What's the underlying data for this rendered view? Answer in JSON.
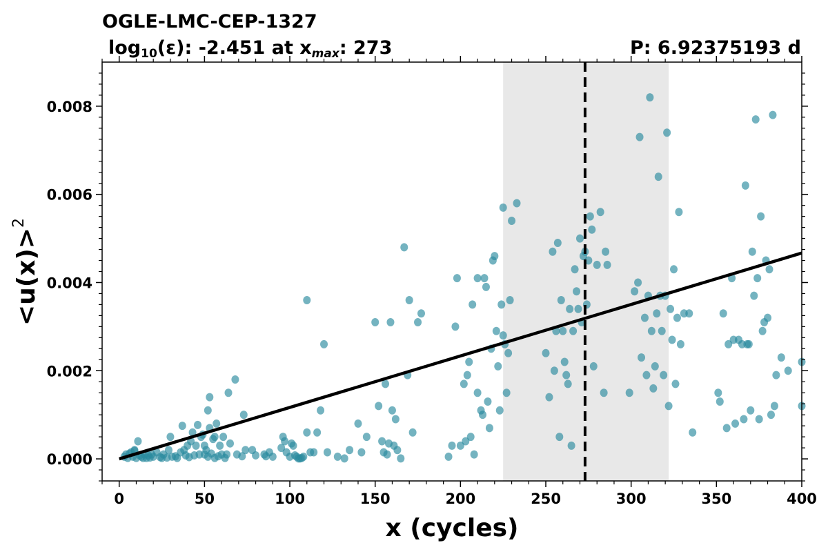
{
  "header": {
    "star_name": "OGLE-LMC-CEP-1327",
    "eps_label": "log",
    "eps_sub": "10",
    "eps_mid": "(ε): -2.451 at x",
    "xmax_sub": "max",
    "xmax_value": ": 273",
    "period": "P: 6.92375193 d"
  },
  "chart_data": {
    "type": "scatter",
    "title": "OGLE-LMC-CEP-1327",
    "xlabel": "x (cycles)",
    "ylabel": "<u(x)>",
    "ylabel_sup": "2",
    "xlim": [
      -10,
      400
    ],
    "ylim": [
      -0.0005,
      0.009
    ],
    "x_ticks": [
      0,
      50,
      100,
      150,
      200,
      250,
      300,
      350,
      400
    ],
    "x_tick_labels": [
      "0",
      "50",
      "100",
      "150",
      "200",
      "250",
      "300",
      "350",
      "400"
    ],
    "y_ticks": [
      0.0,
      0.002,
      0.004,
      0.006,
      0.008
    ],
    "y_tick_labels": [
      "0.000",
      "0.002",
      "0.004",
      "0.006",
      "0.008"
    ],
    "shaded_band_x": [
      225,
      322
    ],
    "vline_x": 273,
    "fit_line": {
      "x": [
        0,
        400
      ],
      "y": [
        0.0,
        0.00467
      ]
    },
    "colors": {
      "points": "#2a8a9e",
      "shade": "#e8e8e8",
      "line": "#000000"
    },
    "series": [
      {
        "points": [
          [
            3,
            5e-05
          ],
          [
            4,
            0.0001
          ],
          [
            5,
            2e-05
          ],
          [
            6,
            0.00012
          ],
          [
            7,
            0.00015
          ],
          [
            8,
            5e-05
          ],
          [
            9,
            0.0002
          ],
          [
            9,
            0.00018
          ],
          [
            10,
            2e-05
          ],
          [
            11,
            0.0004
          ],
          [
            12,
            8e-05
          ],
          [
            13,
            5e-05
          ],
          [
            14,
            2e-05
          ],
          [
            15,
            0.0001
          ],
          [
            16,
            2e-05
          ],
          [
            17,
            8e-05
          ],
          [
            18,
            3e-05
          ],
          [
            19,
            0.0001
          ],
          [
            20,
            5e-05
          ],
          [
            22,
            0.00015
          ],
          [
            24,
            4e-05
          ],
          [
            25,
            2e-05
          ],
          [
            26,
            0.0001
          ],
          [
            28,
            3e-05
          ],
          [
            29,
            0.0002
          ],
          [
            30,
            0.0005
          ],
          [
            31,
            5e-05
          ],
          [
            33,
            6e-05
          ],
          [
            34,
            2e-05
          ],
          [
            36,
            0.00015
          ],
          [
            37,
            0.00075
          ],
          [
            38,
            0.0002
          ],
          [
            39,
            8e-05
          ],
          [
            40,
            0.0003
          ],
          [
            41,
            4e-05
          ],
          [
            42,
            0.0004
          ],
          [
            43,
            0.0006
          ],
          [
            44,
            8e-05
          ],
          [
            45,
            0.0003
          ],
          [
            46,
            0.00077
          ],
          [
            47,
            0.0001
          ],
          [
            48,
            0.0005
          ],
          [
            49,
            0.00055
          ],
          [
            50,
            0.0001
          ],
          [
            50,
            0.0003
          ],
          [
            51,
            0.0002
          ],
          [
            52,
            0.0011
          ],
          [
            52,
            5e-05
          ],
          [
            53,
            0.0014
          ],
          [
            53,
            0.0007
          ],
          [
            54,
            0.00012
          ],
          [
            55,
            0.00045
          ],
          [
            56,
            0.0005
          ],
          [
            56,
            2e-05
          ],
          [
            57,
            0.0008
          ],
          [
            58,
            6e-05
          ],
          [
            59,
            0.0003
          ],
          [
            60,
            0.0001
          ],
          [
            61,
            0.0005
          ],
          [
            62,
            2e-05
          ],
          [
            63,
            0.0001
          ],
          [
            64,
            0.0015
          ],
          [
            65,
            0.00035
          ],
          [
            68,
            0.0018
          ],
          [
            69,
            0.0001
          ],
          [
            72,
            6e-05
          ],
          [
            73,
            0.001
          ],
          [
            74,
            0.0002
          ],
          [
            78,
            0.0002
          ],
          [
            80,
            8e-05
          ],
          [
            85,
            0.0001
          ],
          [
            86,
            6e-05
          ],
          [
            88,
            0.00015
          ],
          [
            90,
            5e-05
          ],
          [
            95,
            0.00025
          ],
          [
            96,
            0.0005
          ],
          [
            97,
            0.0004
          ],
          [
            98,
            0.00015
          ],
          [
            100,
            5e-05
          ],
          [
            101,
            0.00035
          ],
          [
            102,
            0.0003
          ],
          [
            103,
            8e-05
          ],
          [
            104,
            5e-05
          ],
          [
            105,
            1e-05
          ],
          [
            106,
            1e-05
          ],
          [
            107,
            2e-05
          ],
          [
            108,
            5e-05
          ],
          [
            110,
            0.0036
          ],
          [
            110,
            0.0006
          ],
          [
            112,
            0.00015
          ],
          [
            114,
            0.00015
          ],
          [
            116,
            0.0006
          ],
          [
            118,
            0.0011
          ],
          [
            120,
            0.0026
          ],
          [
            122,
            0.00015
          ],
          [
            128,
            5e-05
          ],
          [
            132,
            1e-05
          ],
          [
            135,
            0.0002
          ],
          [
            140,
            0.0008
          ],
          [
            142,
            0.00015
          ],
          [
            145,
            0.0005
          ],
          [
            150,
            0.0031
          ],
          [
            152,
            0.0012
          ],
          [
            154,
            0.0004
          ],
          [
            155,
            0.00015
          ],
          [
            156,
            0.0017
          ],
          [
            157,
            0.0001
          ],
          [
            158,
            0.00035
          ],
          [
            159,
            0.0031
          ],
          [
            160,
            0.0011
          ],
          [
            161,
            0.0003
          ],
          [
            162,
            0.0009
          ],
          [
            163,
            0.0002
          ],
          [
            165,
            1e-05
          ],
          [
            167,
            0.0048
          ],
          [
            169,
            0.0019
          ],
          [
            170,
            0.0036
          ],
          [
            172,
            0.0006
          ],
          [
            175,
            0.0031
          ],
          [
            177,
            0.0033
          ],
          [
            193,
            5e-05
          ],
          [
            195,
            0.0003
          ],
          [
            197,
            0.003
          ],
          [
            198,
            0.0041
          ],
          [
            200,
            0.0003
          ],
          [
            202,
            0.0017
          ],
          [
            203,
            0.0004
          ],
          [
            204,
            0.0019
          ],
          [
            205,
            0.0022
          ],
          [
            206,
            0.0005
          ],
          [
            207,
            0.0035
          ],
          [
            208,
            0.0001
          ],
          [
            210,
            0.0015
          ],
          [
            210,
            0.0041
          ],
          [
            212,
            0.0011
          ],
          [
            213,
            0.001
          ],
          [
            214,
            0.0041
          ],
          [
            215,
            0.0039
          ],
          [
            216,
            0.0013
          ],
          [
            217,
            0.0007
          ],
          [
            218,
            0.0025
          ],
          [
            219,
            0.0045
          ],
          [
            220,
            0.0046
          ],
          [
            221,
            0.0029
          ],
          [
            222,
            0.0021
          ],
          [
            223,
            0.0011
          ],
          [
            224,
            0.0035
          ],
          [
            225,
            0.0028
          ],
          [
            225,
            0.0057
          ],
          [
            226,
            0.0026
          ],
          [
            227,
            0.0015
          ],
          [
            228,
            0.0024
          ],
          [
            229,
            0.0036
          ],
          [
            230,
            0.0054
          ],
          [
            233,
            0.0058
          ],
          [
            250,
            0.0024
          ],
          [
            252,
            0.0014
          ],
          [
            254,
            0.0047
          ],
          [
            255,
            0.002
          ],
          [
            256,
            0.0029
          ],
          [
            257,
            0.0049
          ],
          [
            258,
            0.0005
          ],
          [
            259,
            0.0036
          ],
          [
            260,
            0.0029
          ],
          [
            261,
            0.0022
          ],
          [
            262,
            0.0019
          ],
          [
            263,
            0.0017
          ],
          [
            264,
            0.0034
          ],
          [
            265,
            0.0003
          ],
          [
            266,
            0.0029
          ],
          [
            267,
            0.0043
          ],
          [
            268,
            0.0038
          ],
          [
            269,
            0.0034
          ],
          [
            270,
            0.005
          ],
          [
            271,
            0.0031
          ],
          [
            272,
            0.0046
          ],
          [
            273,
            0.0047
          ],
          [
            274,
            0.0035
          ],
          [
            275,
            0.0045
          ],
          [
            276,
            0.0055
          ],
          [
            277,
            0.0052
          ],
          [
            278,
            0.0021
          ],
          [
            280,
            0.0044
          ],
          [
            282,
            0.0056
          ],
          [
            284,
            0.0015
          ],
          [
            285,
            0.0047
          ],
          [
            286,
            0.0044
          ],
          [
            299,
            0.0015
          ],
          [
            302,
            0.0038
          ],
          [
            304,
            0.004
          ],
          [
            305,
            0.0073
          ],
          [
            306,
            0.0023
          ],
          [
            308,
            0.0032
          ],
          [
            309,
            0.0019
          ],
          [
            310,
            0.0037
          ],
          [
            311,
            0.0082
          ],
          [
            312,
            0.0029
          ],
          [
            313,
            0.0016
          ],
          [
            314,
            0.0021
          ],
          [
            315,
            0.0033
          ],
          [
            316,
            0.0064
          ],
          [
            317,
            0.0037
          ],
          [
            318,
            0.0029
          ],
          [
            319,
            0.0019
          ],
          [
            320,
            0.0037
          ],
          [
            321,
            0.0074
          ],
          [
            322,
            0.0012
          ],
          [
            323,
            0.0034
          ],
          [
            324,
            0.0027
          ],
          [
            325,
            0.0043
          ],
          [
            326,
            0.0017
          ],
          [
            327,
            0.0032
          ],
          [
            328,
            0.0056
          ],
          [
            329,
            0.0026
          ],
          [
            331,
            0.0033
          ],
          [
            334,
            0.0033
          ],
          [
            336,
            0.0006
          ],
          [
            351,
            0.0015
          ],
          [
            352,
            0.0013
          ],
          [
            354,
            0.0033
          ],
          [
            356,
            0.0007
          ],
          [
            357,
            0.0026
          ],
          [
            359,
            0.0041
          ],
          [
            360,
            0.0027
          ],
          [
            361,
            0.0008
          ],
          [
            363,
            0.0027
          ],
          [
            365,
            0.0026
          ],
          [
            366,
            0.0009
          ],
          [
            367,
            0.0062
          ],
          [
            368,
            0.0026
          ],
          [
            369,
            0.0026
          ],
          [
            370,
            0.0011
          ],
          [
            371,
            0.0047
          ],
          [
            372,
            0.0037
          ],
          [
            373,
            0.0077
          ],
          [
            374,
            0.0041
          ],
          [
            375,
            0.0009
          ],
          [
            376,
            0.0055
          ],
          [
            377,
            0.0029
          ],
          [
            378,
            0.0031
          ],
          [
            379,
            0.0045
          ],
          [
            380,
            0.0032
          ],
          [
            381,
            0.0043
          ],
          [
            382,
            0.001
          ],
          [
            383,
            0.0078
          ],
          [
            384,
            0.0012
          ],
          [
            385,
            0.0019
          ],
          [
            388,
            0.0023
          ],
          [
            392,
            0.002
          ],
          [
            400,
            0.0022
          ],
          [
            400,
            0.0012
          ]
        ]
      }
    ]
  }
}
